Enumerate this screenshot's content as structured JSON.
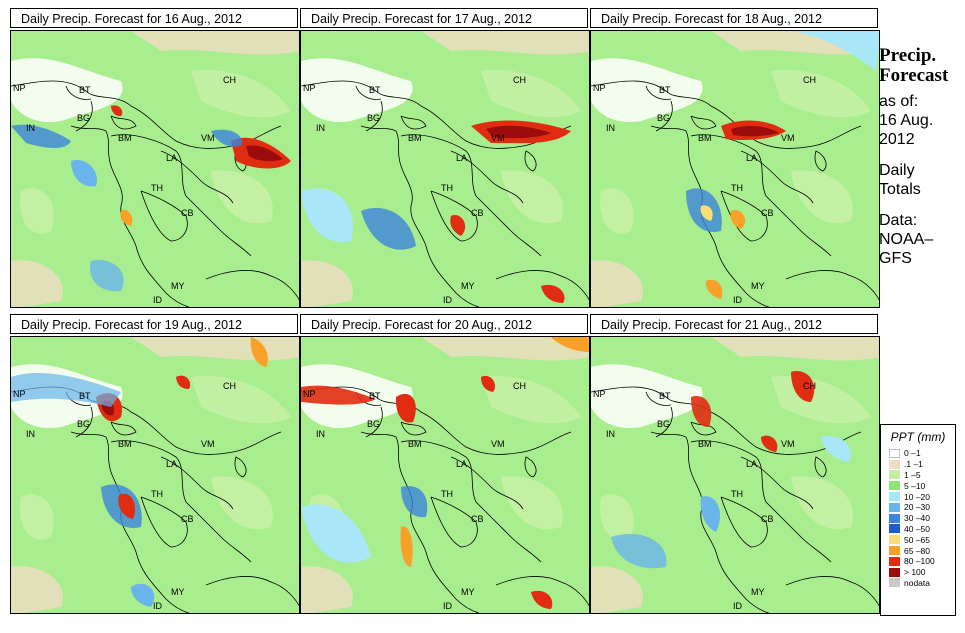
{
  "panels": [
    {
      "title": "Daily Precip. Forecast for  16 Aug., 2012"
    },
    {
      "title": "Daily Precip. Forecast for  17 Aug., 2012"
    },
    {
      "title": "Daily Precip. Forecast for  18 Aug., 2012"
    },
    {
      "title": "Daily Precip. Forecast for  19 Aug., 2012"
    },
    {
      "title": "Daily Precip. Forecast for  20 Aug., 2012"
    },
    {
      "title": "Daily Precip. Forecast for  21 Aug., 2012"
    }
  ],
  "country_labels": {
    "ch": "CH",
    "np": "NP",
    "bt": "BT",
    "in": "IN",
    "bg": "BG",
    "bm": "BM",
    "vm": "VM",
    "la": "LA",
    "th": "TH",
    "cb": "CB",
    "my": "MY",
    "id": "ID"
  },
  "side": {
    "heading1": "Precip.",
    "heading2": "Forecast",
    "asof": "as of:",
    "date1": "16 Aug.",
    "date2": "2012",
    "daily1": "Daily",
    "daily2": "Totals",
    "data1": "Data:",
    "data2": "NOAA–",
    "data3": "GFS"
  },
  "legend": {
    "title": "PPT (mm)",
    "items": [
      {
        "label": "0 –1",
        "color": "#ffffff"
      },
      {
        "label": ".1 –1",
        "color": "#efdcc4"
      },
      {
        "label": "1 –5",
        "color": "#c4f0a4"
      },
      {
        "label": "5 –10",
        "color": "#8ee474"
      },
      {
        "label": "10 –20",
        "color": "#a8e6f8"
      },
      {
        "label": "20 –30",
        "color": "#6ab4ec"
      },
      {
        "label": "30 –40",
        "color": "#3c84dc"
      },
      {
        "label": "40 –50",
        "color": "#1e5ccc"
      },
      {
        "label": "50 –65",
        "color": "#f8de74"
      },
      {
        "label": "65 –80",
        "color": "#f8a028"
      },
      {
        "label": "80 –100",
        "color": "#e02c10"
      },
      {
        "label": "> 100",
        "color": "#9c0c0c"
      },
      {
        "label": "nodata",
        "color": "#c8c8c8"
      }
    ]
  }
}
